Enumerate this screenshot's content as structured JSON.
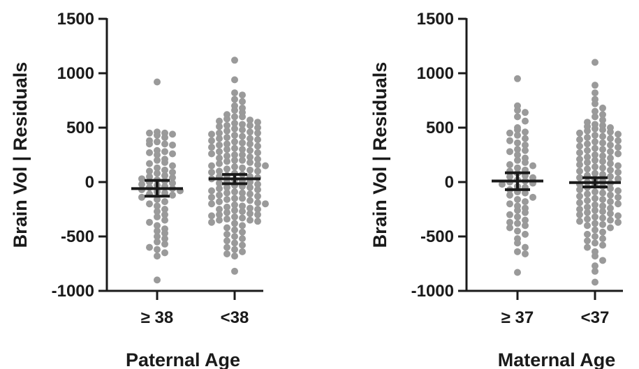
{
  "chart_data": [
    {
      "type": "scatter",
      "subtype": "dot-plot-with-mean-and-error-bars",
      "title": "",
      "xlabel": "Paternal  Age",
      "ylabel": "Brain  Vol | Residuals",
      "ylim": [
        -1000,
        1500
      ],
      "yticks": [
        "1500",
        "1000",
        "500",
        "0",
        "-500",
        "-1000"
      ],
      "ytick_values": [
        1500,
        1000,
        500,
        0,
        -500,
        -1000
      ],
      "categories": [
        "≥ 38",
        "<38"
      ],
      "groups": [
        {
          "category": "≥ 38",
          "mean": -60,
          "ci_low": -130,
          "ci_high": 15,
          "values": [
            920,
            460,
            450,
            450,
            440,
            430,
            410,
            380,
            370,
            350,
            350,
            340,
            290,
            280,
            270,
            260,
            250,
            210,
            200,
            180,
            170,
            150,
            130,
            110,
            100,
            90,
            80,
            60,
            50,
            40,
            30,
            20,
            10,
            0,
            -10,
            -20,
            -30,
            -40,
            -50,
            -60,
            -70,
            -80,
            -90,
            -100,
            -110,
            -120,
            -140,
            -160,
            -180,
            -200,
            -220,
            -250,
            -270,
            -300,
            -320,
            -350,
            -370,
            -400,
            -430,
            -450,
            -470,
            -500,
            -520,
            -550,
            -570,
            -600,
            -620,
            -650,
            -680,
            -900
          ]
        },
        {
          "category": "<38",
          "mean": 30,
          "ci_low": -15,
          "ci_high": 70,
          "values": [
            1120,
            940,
            820,
            800,
            760,
            740,
            700,
            680,
            660,
            640,
            620,
            600,
            600,
            580,
            570,
            560,
            550,
            540,
            530,
            520,
            520,
            510,
            500,
            490,
            480,
            470,
            460,
            450,
            450,
            440,
            430,
            420,
            410,
            400,
            400,
            390,
            380,
            370,
            360,
            350,
            350,
            340,
            330,
            320,
            310,
            300,
            300,
            290,
            280,
            270,
            260,
            250,
            250,
            240,
            230,
            220,
            210,
            200,
            200,
            190,
            180,
            170,
            160,
            150,
            150,
            140,
            130,
            120,
            110,
            100,
            100,
            90,
            80,
            70,
            60,
            50,
            50,
            40,
            30,
            20,
            10,
            0,
            0,
            -10,
            -20,
            -30,
            -40,
            -50,
            -50,
            -60,
            -70,
            -80,
            -90,
            -100,
            -100,
            -110,
            -120,
            -130,
            -140,
            -150,
            -150,
            -160,
            -170,
            -180,
            -190,
            -200,
            -200,
            -210,
            -220,
            -230,
            -240,
            -250,
            -250,
            -260,
            -270,
            -280,
            -290,
            -300,
            -300,
            -310,
            -320,
            -330,
            -340,
            -350,
            -350,
            -360,
            -370,
            -380,
            -400,
            -420,
            -440,
            -460,
            -480,
            -500,
            -520,
            -540,
            -560,
            -580,
            -600,
            -620,
            -640,
            -660,
            -680,
            -820
          ]
        }
      ]
    },
    {
      "type": "scatter",
      "subtype": "dot-plot-with-mean-and-error-bars",
      "title": "",
      "xlabel": "Maternal  Age",
      "ylabel": "Brain  Vol | Residuals",
      "ylim": [
        -1000,
        1500
      ],
      "yticks": [
        "1500",
        "1000",
        "500",
        "0",
        "-500",
        "-1000"
      ],
      "ytick_values": [
        1500,
        1000,
        500,
        0,
        -500,
        -1000
      ],
      "categories": [
        "≥ 37",
        "<37"
      ],
      "groups": [
        {
          "category": "≥ 37",
          "mean": 10,
          "ci_low": -70,
          "ci_high": 85,
          "values": [
            950,
            700,
            660,
            640,
            600,
            560,
            500,
            480,
            460,
            450,
            430,
            400,
            380,
            360,
            340,
            300,
            290,
            280,
            250,
            220,
            200,
            180,
            160,
            150,
            130,
            110,
            100,
            80,
            60,
            50,
            40,
            20,
            10,
            0,
            -10,
            -20,
            -40,
            -50,
            -70,
            -90,
            -100,
            -120,
            -140,
            -160,
            -180,
            -200,
            -220,
            -240,
            -260,
            -280,
            -300,
            -320,
            -350,
            -370,
            -380,
            -400,
            -420,
            -450,
            -480,
            -520,
            -560,
            -600,
            -640,
            -660,
            -830
          ]
        },
        {
          "category": "<37",
          "mean": -5,
          "ci_low": -45,
          "ci_high": 40,
          "values": [
            1100,
            890,
            820,
            760,
            720,
            680,
            650,
            620,
            600,
            570,
            550,
            530,
            520,
            510,
            500,
            490,
            480,
            470,
            460,
            450,
            440,
            430,
            420,
            410,
            400,
            390,
            380,
            370,
            360,
            350,
            340,
            330,
            320,
            310,
            300,
            290,
            280,
            270,
            260,
            250,
            240,
            230,
            220,
            210,
            200,
            190,
            180,
            170,
            160,
            150,
            140,
            130,
            120,
            110,
            100,
            90,
            80,
            70,
            60,
            50,
            40,
            30,
            20,
            10,
            0,
            -10,
            -20,
            -30,
            -40,
            -50,
            -60,
            -70,
            -80,
            -90,
            -100,
            -110,
            -120,
            -130,
            -140,
            -150,
            -160,
            -170,
            -180,
            -190,
            -200,
            -210,
            -220,
            -230,
            -240,
            -250,
            -260,
            -270,
            -280,
            -290,
            -300,
            -310,
            -320,
            -330,
            -340,
            -350,
            -360,
            -370,
            -380,
            -390,
            -400,
            -420,
            -440,
            -460,
            -480,
            -500,
            -520,
            -540,
            -560,
            -580,
            -600,
            -640,
            -680,
            -720,
            -770,
            -820,
            -920
          ]
        }
      ]
    }
  ],
  "colors": {
    "dots": "#9a9a9a",
    "axes": "#1a1a1a",
    "background": "#ffffff"
  }
}
